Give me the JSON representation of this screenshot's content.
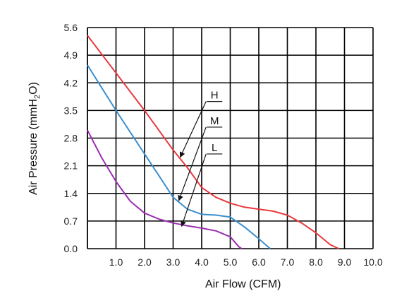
{
  "chart_data": {
    "type": "line",
    "xlabel": "Air Flow (CFM)",
    "ylabel_main": "Air Pressure (mmH",
    "ylabel_sub": "2",
    "ylabel_end": "O)",
    "xlim": [
      0,
      10
    ],
    "ylim": [
      0,
      5.6
    ],
    "grid": true,
    "x_ticks": [
      "1.0",
      "2.0",
      "3.0",
      "4.0",
      "5.0",
      "6.0",
      "7.0",
      "8.0",
      "9.0",
      "10.0"
    ],
    "y_ticks": [
      "0.0",
      "0.7",
      "1.4",
      "2.1",
      "2.8",
      "3.5",
      "4.2",
      "4.9",
      "5.6"
    ],
    "series": [
      {
        "name": "H",
        "color": "#e8383d",
        "points": [
          [
            0,
            5.4
          ],
          [
            1,
            4.45
          ],
          [
            2,
            3.5
          ],
          [
            3,
            2.5
          ],
          [
            3.5,
            2.05
          ],
          [
            4,
            1.55
          ],
          [
            4.5,
            1.3
          ],
          [
            5,
            1.15
          ],
          [
            5.5,
            1.05
          ],
          [
            6,
            1.0
          ],
          [
            6.5,
            0.95
          ],
          [
            7,
            0.85
          ],
          [
            7.5,
            0.65
          ],
          [
            8,
            0.4
          ],
          [
            8.5,
            0.1
          ],
          [
            8.8,
            0.0
          ]
        ]
      },
      {
        "name": "M",
        "color": "#3a8fd0",
        "points": [
          [
            0,
            4.65
          ],
          [
            1,
            3.5
          ],
          [
            2,
            2.4
          ],
          [
            2.5,
            1.85
          ],
          [
            3,
            1.3
          ],
          [
            3.5,
            1.0
          ],
          [
            4,
            0.87
          ],
          [
            4.5,
            0.85
          ],
          [
            5,
            0.8
          ],
          [
            5.5,
            0.55
          ],
          [
            6,
            0.25
          ],
          [
            6.4,
            0.0
          ]
        ]
      },
      {
        "name": "L",
        "color": "#9b2fb0",
        "points": [
          [
            0,
            3.0
          ],
          [
            0.5,
            2.3
          ],
          [
            1,
            1.7
          ],
          [
            1.5,
            1.2
          ],
          [
            2,
            0.9
          ],
          [
            2.5,
            0.75
          ],
          [
            3,
            0.65
          ],
          [
            3.5,
            0.58
          ],
          [
            4,
            0.52
          ],
          [
            4.5,
            0.45
          ],
          [
            5,
            0.3
          ],
          [
            5.3,
            0.05
          ],
          [
            5.4,
            0.0
          ]
        ]
      }
    ],
    "callouts": [
      {
        "label": "H",
        "label_at": [
          4.45,
          3.8
        ],
        "arrow_to": [
          3.25,
          2.32
        ]
      },
      {
        "label": "M",
        "label_at": [
          4.45,
          3.15
        ],
        "arrow_to": [
          3.2,
          1.22
        ]
      },
      {
        "label": "L",
        "label_at": [
          4.45,
          2.47
        ],
        "arrow_to": [
          3.3,
          0.57
        ]
      }
    ]
  }
}
